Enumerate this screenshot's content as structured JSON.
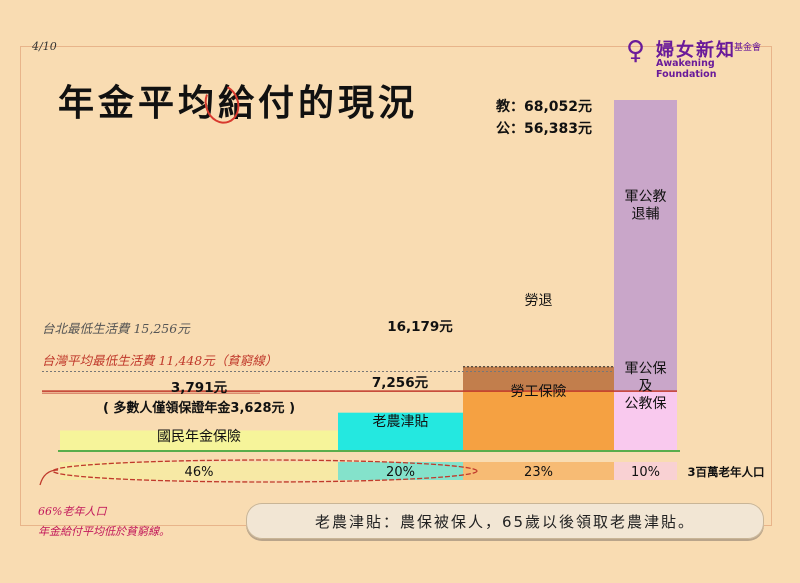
{
  "page_number": "4/10",
  "title": "年金平均給付的現況",
  "logo": {
    "mark": "♀",
    "name_cn": "婦女新知",
    "name_cn_small": "基金會",
    "name_en": "Awakening Foundation"
  },
  "colors": {
    "background": "#f9dcb2",
    "national_pension": "#f6f49a",
    "farmer_allowance": "#24e8e0",
    "labor_insurance": "#f5a142",
    "labor_retirement": "#c27e4c",
    "military_gov_teacher_retirement": "#c9a6c9",
    "military_gov_insurance": "#f9c9ee",
    "baseline_line": "#5aad4b",
    "red_note": "#c0392b"
  },
  "reference_lines": [
    {
      "label": "台北最低生活費 15,256元",
      "value": 15256,
      "color": "#555555"
    },
    {
      "label": "台灣平均最低生活費 11,448元（貧窮線）",
      "value": 11448,
      "color": "#c0392b"
    }
  ],
  "chart_data": {
    "type": "bar",
    "unit": "元",
    "categories": [
      "國民年金保險",
      "老農津貼",
      "勞工保險＋勞退",
      "軍公教保＋退輔"
    ],
    "population_share_label": "3百萬老年人口",
    "population_share": [
      "46%",
      "20%",
      "23%",
      "10%"
    ],
    "population_share_values": [
      46,
      20,
      23,
      10
    ],
    "series": [
      {
        "name": "國民年金保險",
        "category": "國民年金保險",
        "value": 3791,
        "value_label": "3,791元",
        "sub_label": "( 多數人僅領保證年金3,628元 )"
      },
      {
        "name": "老農津貼",
        "category": "老農津貼",
        "value": 7256,
        "value_label": "7,256元"
      },
      {
        "name": "勞工保險",
        "category": "勞工保險＋勞退",
        "value": 11448
      },
      {
        "name": "勞退",
        "category": "勞工保險＋勞退",
        "value": 4731,
        "total_label": "16,179元",
        "total": 16179
      },
      {
        "name": "軍公保\n及\n公教保",
        "category": "軍公教保＋退輔",
        "value": 11448
      },
      {
        "name": "軍公教\n退輔",
        "category": "軍公教保＋退輔",
        "value": 56604,
        "totals": [
          "教：68,052元",
          "公：56,383元"
        ],
        "total": 68052
      }
    ],
    "ylim": [
      0,
      68052
    ]
  },
  "annotations": {
    "note_66": "66%老年人口",
    "note_poverty": "年金給付平均低於貧窮線。"
  },
  "footnote": "老農津貼：農保被保人，65歲以後領取老農津貼。"
}
